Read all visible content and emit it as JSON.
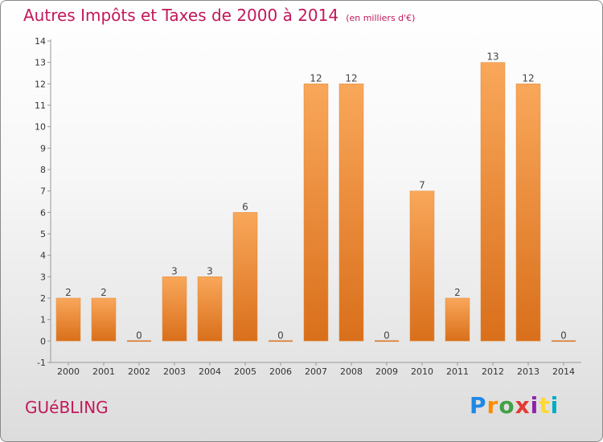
{
  "title": "Autres Impôts et Taxes de 2000 à 2014",
  "subtitle": "(en milliers d'€)",
  "commune": "GUéBLING",
  "logo": {
    "text": "Proxiti",
    "colors": [
      "#1e88e5",
      "#fb8c00",
      "#43a047",
      "#e53935",
      "#8e24aa",
      "#fdd835",
      "#00acc1"
    ]
  },
  "colors": {
    "bar_light": "#f9a75a",
    "bar_dark": "#d96f1b",
    "title": "#c2185b",
    "axis": "#999999"
  },
  "chart_data": {
    "type": "bar",
    "categories": [
      "2000",
      "2001",
      "2002",
      "2003",
      "2004",
      "2005",
      "2006",
      "2007",
      "2008",
      "2009",
      "2010",
      "2011",
      "2012",
      "2013",
      "2014"
    ],
    "values": [
      2,
      2,
      0,
      3,
      3,
      6,
      0,
      12,
      12,
      0,
      7,
      2,
      13,
      12,
      0
    ],
    "ylim": [
      -1,
      14
    ],
    "yticks": [
      -1,
      0,
      1,
      2,
      3,
      4,
      5,
      6,
      7,
      8,
      9,
      10,
      11,
      12,
      13,
      14
    ],
    "grid": false
  }
}
